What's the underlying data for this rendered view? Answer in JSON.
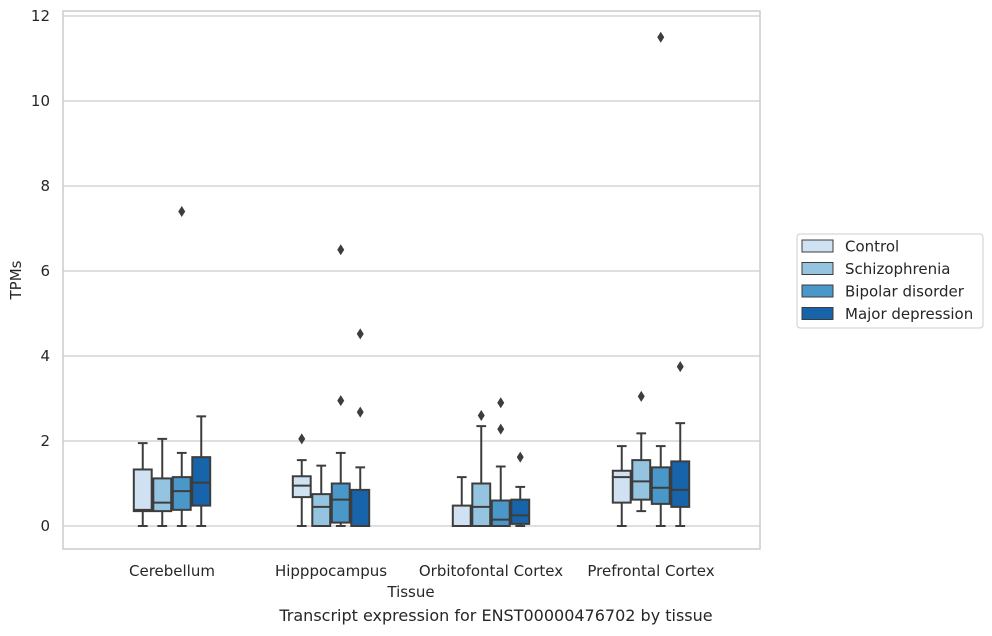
{
  "chart_data": {
    "type": "box",
    "categories": [
      "Cerebellum",
      "Hipppocampus",
      "Orbitofontal Cortex",
      "Prefrontal Cortex"
    ],
    "xlabel": "Tissue",
    "ylabel": "TPMs",
    "ylim": [
      -0.55,
      12.15
    ],
    "yticks": [
      0,
      2,
      4,
      6,
      8,
      10,
      12
    ],
    "grid": true,
    "legend_position": "right",
    "series": [
      {
        "name": "Control",
        "color": "#d0e1f2",
        "boxes": [
          {
            "whislo": 0.0,
            "q1": 0.35,
            "med": 0.38,
            "q3": 1.33,
            "whishi": 1.95,
            "fliers": []
          },
          {
            "whislo": 0.0,
            "q1": 0.68,
            "med": 0.95,
            "q3": 1.17,
            "whishi": 1.55,
            "fliers": [
              2.05
            ]
          },
          {
            "whislo": 0.0,
            "q1": 0.0,
            "med": 0.0,
            "q3": 0.48,
            "whishi": 1.15,
            "fliers": []
          },
          {
            "whislo": 0.0,
            "q1": 0.55,
            "med": 1.15,
            "q3": 1.3,
            "whishi": 1.88,
            "fliers": []
          }
        ]
      },
      {
        "name": "Schizophrenia",
        "color": "#94c4df",
        "boxes": [
          {
            "whislo": 0.0,
            "q1": 0.35,
            "med": 0.55,
            "q3": 1.12,
            "whishi": 2.05,
            "fliers": []
          },
          {
            "whislo": 0.0,
            "q1": 0.0,
            "med": 0.45,
            "q3": 0.75,
            "whishi": 1.42,
            "fliers": []
          },
          {
            "whislo": 0.0,
            "q1": 0.0,
            "med": 0.45,
            "q3": 1.0,
            "whishi": 2.35,
            "fliers": [
              2.6
            ]
          },
          {
            "whislo": 0.35,
            "q1": 0.62,
            "med": 1.05,
            "q3": 1.55,
            "whishi": 2.18,
            "fliers": [
              3.05
            ]
          }
        ]
      },
      {
        "name": "Bipolar disorder",
        "color": "#4a98c9",
        "boxes": [
          {
            "whislo": 0.0,
            "q1": 0.38,
            "med": 0.82,
            "q3": 1.15,
            "whishi": 1.72,
            "fliers": [
              7.4
            ]
          },
          {
            "whislo": 0.0,
            "q1": 0.08,
            "med": 0.62,
            "q3": 1.0,
            "whishi": 1.72,
            "fliers": [
              2.95,
              6.5
            ]
          },
          {
            "whislo": 0.0,
            "q1": 0.0,
            "med": 0.15,
            "q3": 0.6,
            "whishi": 1.4,
            "fliers": [
              2.28,
              2.9
            ]
          },
          {
            "whislo": 0.0,
            "q1": 0.52,
            "med": 0.9,
            "q3": 1.38,
            "whishi": 1.88,
            "fliers": [
              11.5
            ]
          }
        ]
      },
      {
        "name": "Major depression",
        "color": "#1764ab",
        "boxes": [
          {
            "whislo": 0.0,
            "q1": 0.48,
            "med": 1.02,
            "q3": 1.62,
            "whishi": 2.58,
            "fliers": []
          },
          {
            "whislo": 0.0,
            "q1": 0.0,
            "med": 0.0,
            "q3": 0.85,
            "whishi": 1.38,
            "fliers": [
              2.68,
              4.52
            ]
          },
          {
            "whislo": 0.0,
            "q1": 0.05,
            "med": 0.25,
            "q3": 0.62,
            "whishi": 0.92,
            "fliers": [
              1.62
            ]
          },
          {
            "whislo": 0.0,
            "q1": 0.45,
            "med": 0.85,
            "q3": 1.52,
            "whishi": 2.42,
            "fliers": [
              3.75
            ]
          }
        ]
      }
    ]
  },
  "caption": "Transcript expression for ENST00000476702 by tissue"
}
